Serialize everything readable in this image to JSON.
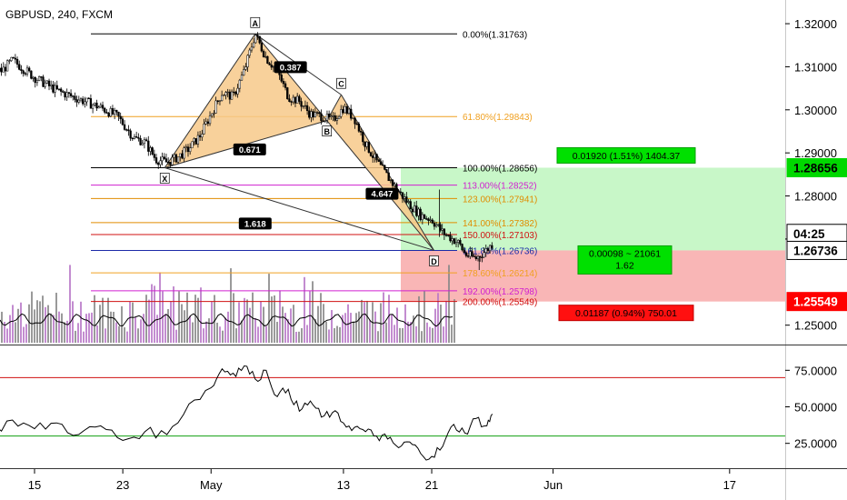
{
  "header": {
    "symbol": "GBPUSD, 240, FXCM"
  },
  "chart_data": {
    "type": "candlestick",
    "symbol": "GBPUSD",
    "timeframe": "240",
    "source": "FXCM",
    "ylim": [
      1.2455,
      1.3255
    ],
    "price_ticks": [
      "1.32000",
      "1.31000",
      "1.30000",
      "1.29000",
      "1.28000",
      "1.27000",
      "1.25000"
    ],
    "price_tick_values": [
      1.32,
      1.31,
      1.3,
      1.29,
      1.28,
      1.27,
      1.25
    ],
    "x_ticks": [
      {
        "label": "15",
        "day": 15
      },
      {
        "label": "23",
        "day": 23
      },
      {
        "label": "May",
        "day": 31
      },
      {
        "label": "13",
        "day": 43
      },
      {
        "label": "21",
        "day": 51
      },
      {
        "label": "Jun",
        "day": 62
      },
      {
        "label": "17",
        "day": 78
      }
    ],
    "price_path": [
      [
        7.5,
        1.3135
      ],
      [
        10,
        1.3105
      ],
      [
        12,
        1.309
      ],
      [
        13,
        1.3115
      ],
      [
        15,
        1.3075
      ],
      [
        17,
        1.3045
      ],
      [
        19,
        1.3025
      ],
      [
        21,
        1.3005
      ],
      [
        22.5,
        1.2985
      ],
      [
        24,
        1.2935
      ],
      [
        25,
        1.2925
      ],
      [
        26,
        1.2885
      ],
      [
        27,
        1.2878
      ],
      [
        28,
        1.289
      ],
      [
        29,
        1.291
      ],
      [
        30,
        1.294
      ],
      [
        31,
        1.299
      ],
      [
        32,
        1.304
      ],
      [
        33,
        1.303
      ],
      [
        34,
        1.309
      ],
      [
        35,
        1.3176
      ],
      [
        36,
        1.312
      ],
      [
        37,
        1.309
      ],
      [
        38,
        1.303
      ],
      [
        39,
        1.302
      ],
      [
        40,
        1.299
      ],
      [
        41,
        1.2985
      ],
      [
        42,
        1.2975
      ],
      [
        43,
        1.3005
      ],
      [
        44,
        1.298
      ],
      [
        45,
        1.292
      ],
      [
        46,
        1.288
      ],
      [
        47,
        1.2845
      ],
      [
        48,
        1.281
      ],
      [
        49,
        1.278
      ],
      [
        50,
        1.2755
      ],
      [
        51,
        1.2745
      ],
      [
        52,
        1.2715
      ],
      [
        53,
        1.2698
      ],
      [
        53.5,
        1.2689
      ],
      [
        54,
        1.2665
      ],
      [
        55,
        1.2655
      ],
      [
        56,
        1.2675
      ],
      [
        56.5,
        1.2689
      ]
    ],
    "harmonic_pattern": {
      "points": [
        {
          "label": "X",
          "day": 26.8,
          "price": 1.28656
        },
        {
          "label": "A",
          "day": 35.0,
          "price": 1.31763
        },
        {
          "label": "B",
          "day": 41.5,
          "price": 1.2975
        },
        {
          "label": "C",
          "day": 42.8,
          "price": 1.3035
        },
        {
          "label": "D",
          "day": 51.2,
          "price": 1.26736
        }
      ],
      "ratios": [
        {
          "value": "0.671",
          "from": "X",
          "to": "B",
          "day": 34.5,
          "price": 1.2907
        },
        {
          "value": "0.387",
          "from": "A",
          "to": "C",
          "day": 38.2,
          "price": 1.3098
        },
        {
          "value": "4.647",
          "from": "B",
          "to": "D",
          "day": 46.5,
          "price": 1.2804
        },
        {
          "value": "1.618",
          "from": "X",
          "to": "D",
          "day": 35.0,
          "price": 1.2735
        }
      ]
    },
    "fib_levels": [
      {
        "label": "0.00%(1.31763)",
        "price": 1.31763,
        "color": "#000000"
      },
      {
        "label": "61.80%(1.29843)",
        "price": 1.29843,
        "color": "#f0a020"
      },
      {
        "label": "100.00%(1.28656)",
        "price": 1.28656,
        "color": "#000000"
      },
      {
        "label": "113.00%(1.28252)",
        "price": 1.28252,
        "color": "#d020d0"
      },
      {
        "label": "123.00%(1.27941)",
        "price": 1.27941,
        "color": "#e08c00"
      },
      {
        "label": "141.00%(1.27382)",
        "price": 1.27382,
        "color": "#e08c00"
      },
      {
        "label": "150.00%(1.27103)",
        "price": 1.27103,
        "color": "#d01010"
      },
      {
        "label": "161.80%(1.26736)",
        "price": 1.26736,
        "color": "#1c2ba8"
      },
      {
        "label": "178.60%(1.26214)",
        "price": 1.26214,
        "color": "#f0a020"
      },
      {
        "label": "192.00%(1.25798)",
        "price": 1.25798,
        "color": "#d020d0"
      },
      {
        "label": "200.00%(1.25549)",
        "price": 1.25549,
        "color": "#d01010"
      }
    ],
    "position": {
      "entry": 1.26736,
      "target": 1.28656,
      "stop": 1.25549,
      "target_label": "0.01920 (1.51%) 1404.37",
      "stop_label": "0.01187 (0.94%) 750.01",
      "center_label_1": "0.00098 ~ 21061",
      "center_label_2": "1.62"
    },
    "price_axis_labels": [
      {
        "text": "1.28656",
        "price": 1.28656,
        "bg": "#00d800",
        "fg": "#000000"
      },
      {
        "text": "04:25",
        "price": 1.2713,
        "bg": "#ffffff",
        "fg": "#000000"
      },
      {
        "text": "1.26736",
        "price": 1.26736,
        "bg": "#ffffff",
        "fg": "#000000"
      },
      {
        "text": "1.25549",
        "price": 1.25549,
        "bg": "#ff0000",
        "fg": "#ffffff"
      }
    ],
    "oscillator": {
      "ticks": [
        "75.0000",
        "50.0000",
        "25.0000"
      ],
      "tick_values": [
        75,
        50,
        25
      ],
      "ylim": [
        8,
        92
      ],
      "upper_level": 70,
      "lower_level": 30,
      "values": [
        [
          1,
          45
        ],
        [
          3,
          43
        ],
        [
          5,
          52
        ],
        [
          7,
          40
        ],
        [
          9,
          47
        ],
        [
          11,
          32
        ],
        [
          13,
          41
        ],
        [
          15,
          35
        ],
        [
          17,
          39
        ],
        [
          19,
          31
        ],
        [
          21,
          37
        ],
        [
          23,
          27
        ],
        [
          25,
          33
        ],
        [
          27,
          31
        ],
        [
          29,
          52
        ],
        [
          31,
          63
        ],
        [
          32,
          76
        ],
        [
          33,
          73
        ],
        [
          34,
          78
        ],
        [
          35,
          69
        ],
        [
          36,
          75
        ],
        [
          37,
          57
        ],
        [
          38,
          62
        ],
        [
          39,
          47
        ],
        [
          40,
          54
        ],
        [
          41,
          43
        ],
        [
          42,
          46
        ],
        [
          43,
          39
        ],
        [
          44,
          36
        ],
        [
          45,
          33
        ],
        [
          46,
          30
        ],
        [
          47,
          28
        ],
        [
          48,
          22
        ],
        [
          49,
          26
        ],
        [
          50,
          18
        ],
        [
          51,
          16
        ],
        [
          52,
          23
        ],
        [
          53,
          38
        ],
        [
          54,
          32
        ],
        [
          55,
          42
        ],
        [
          56,
          37
        ],
        [
          56.5,
          45
        ]
      ]
    }
  },
  "colors": {
    "pattern_fill": "#f7c98a",
    "target_zone": "#c8f7c8",
    "stop_zone": "#f9b6b6",
    "volume_purple": "#b878c8",
    "volume_gray": "#888888",
    "oscillator_upper": "#d01010",
    "oscillator_lower": "#10a010"
  }
}
